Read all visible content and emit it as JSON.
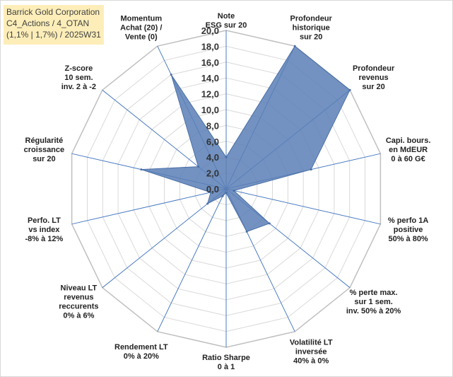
{
  "header": {
    "line1": "Barrick Gold Corporation",
    "line2": "C4_Actions / 4_OTAN",
    "line3": "(1,1% | 1,7%) / 2025W31"
  },
  "chart_data": {
    "type": "radar",
    "rmin": 0,
    "rmax": 20,
    "ticks": [
      0,
      2,
      4,
      6,
      8,
      10,
      12,
      14,
      16,
      18,
      20
    ],
    "tick_labels": [
      "0,0",
      "2,0",
      "4,0",
      "6,0",
      "8,0",
      "10,0",
      "12,0",
      "14,0",
      "16,0",
      "18,0",
      "20,0"
    ],
    "fill_color": "#5b7fb6",
    "axes": [
      {
        "label": [
          "Note",
          "ESG sur 20"
        ],
        "value": 4.0
      },
      {
        "label": [
          "Profondeur",
          "historique",
          "sur 20"
        ],
        "value": 20.0
      },
      {
        "label": [
          "Profondeur",
          "revenus",
          "sur 20"
        ],
        "value": 20.0
      },
      {
        "label": [
          "Capi. bours.",
          "en MdEUR",
          "0 à 60 G€"
        ],
        "value": 11.0
      },
      {
        "label": [
          "% perfo 1A",
          "positive",
          "50% à 80%"
        ],
        "value": 1.0
      },
      {
        "label": [
          "% perte max.",
          "sur 1 sem.",
          "inv. 50% à 20%"
        ],
        "value": 7.0
      },
      {
        "label": [
          "Volatilité LT",
          "inversée",
          "40% à 0%"
        ],
        "value": 6.0
      },
      {
        "label": [
          "Ratio Sharpe",
          "0 à 1"
        ],
        "value": 0.5
      },
      {
        "label": [
          "Rendement LT",
          "0% à 20%"
        ],
        "value": 1.0
      },
      {
        "label": [
          "Niveau LT",
          "revenus",
          "reccurents",
          "0% à 6%"
        ],
        "value": 3.0
      },
      {
        "label": [
          "Perfo. LT",
          "vs index",
          "-8% à 12%"
        ],
        "value": 2.0
      },
      {
        "label": [
          "Régularité",
          "croissance",
          "sur 20"
        ],
        "value": 11.0
      },
      {
        "label": [
          "Z-score",
          "10 sem.",
          "inv. 2 à -2"
        ],
        "value": 4.5
      },
      {
        "label": [
          "Momentum",
          "Achat (20) /",
          "Vente (0)"
        ],
        "value": 16.0
      }
    ]
  }
}
